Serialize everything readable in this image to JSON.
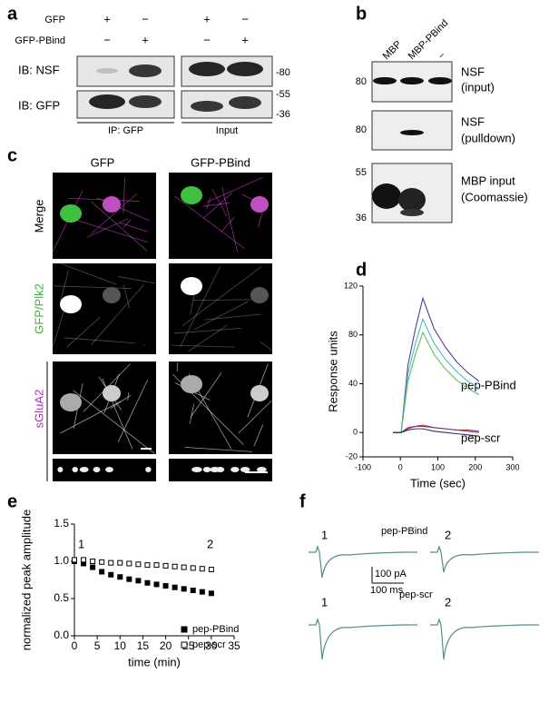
{
  "panel_a": {
    "letter": "a",
    "rows": [
      "GFP",
      "GFP-PBind"
    ],
    "signs": [
      [
        "+",
        "−",
        "+",
        "−"
      ],
      [
        "−",
        "+",
        "−",
        "+"
      ]
    ],
    "blots": [
      "IB: NSF",
      "IB: GFP"
    ],
    "markers": [
      "-80",
      "-55",
      "-36"
    ],
    "groups": [
      "IP: GFP",
      "Input"
    ]
  },
  "panel_b": {
    "letter": "b",
    "lanes": [
      "MBP",
      "MBP-PBind",
      "−"
    ],
    "markers": [
      "80",
      "80",
      "55",
      "36"
    ],
    "labels": [
      "NSF",
      "(input)",
      "NSF",
      "(pulldown)",
      "MBP input",
      "(Coomassie)"
    ]
  },
  "panel_c": {
    "letter": "c",
    "columns": [
      "GFP",
      "GFP-PBind"
    ],
    "rows": [
      "Merge",
      "GFP/Plk2",
      "sGluA2"
    ]
  },
  "panel_f": {
    "letter": "f",
    "conditions": [
      "pep-PBind",
      "pep-scr"
    ],
    "times": [
      "1",
      "2",
      "1",
      "2"
    ],
    "scale": [
      "100 pA",
      "100 ms"
    ]
  },
  "chart_data": [
    {
      "type": "line",
      "panel_label": "d",
      "y_label": "Response units",
      "x_label": "Time (sec)",
      "annotations": [
        "pep-PBind",
        "pep-scr"
      ],
      "x": [
        -20,
        0,
        2,
        20,
        40,
        60,
        90,
        120,
        150,
        180,
        210
      ],
      "series": [
        {
          "color": "#5b3a9a",
          "values": [
            0,
            0,
            0,
            55,
            85,
            110,
            85,
            70,
            58,
            49,
            42
          ]
        },
        {
          "color": "#4bb8c8",
          "values": [
            0,
            0,
            0,
            48,
            73,
            93,
            73,
            60,
            50,
            42,
            36
          ]
        },
        {
          "color": "#5cc05c",
          "values": [
            0,
            0,
            0,
            42,
            64,
            82,
            64,
            52,
            43,
            36,
            31
          ]
        },
        {
          "color": "#c03030",
          "values": [
            0,
            0,
            0,
            3,
            5,
            6,
            4,
            3,
            2,
            1,
            0
          ]
        },
        {
          "color": "#7a3a8a",
          "values": [
            0,
            0,
            0,
            4,
            5,
            5,
            4,
            3,
            2,
            2,
            1
          ]
        },
        {
          "color": "#303060",
          "values": [
            0,
            0,
            0,
            2,
            3,
            3,
            1,
            0,
            -1,
            -2,
            -3
          ]
        }
      ],
      "xlim": [
        -100,
        300
      ],
      "xticks": [
        -100,
        0,
        100,
        200,
        300
      ],
      "ylim": [
        -20,
        120
      ],
      "yticks": [
        -20,
        0,
        40,
        80,
        120
      ]
    },
    {
      "type": "scatter",
      "panel_label": "e",
      "y_label": "normalized peak amplitude",
      "x_label": "time (min)",
      "annotations": [
        "1",
        "2"
      ],
      "x": [
        0,
        2,
        4,
        6,
        8,
        10,
        12,
        14,
        16,
        18,
        20,
        22,
        24,
        26,
        28,
        30
      ],
      "series": [
        {
          "name": "pep-PBind",
          "color": "#000000",
          "marker": "filled",
          "values": [
            1.0,
            0.97,
            0.92,
            0.86,
            0.82,
            0.79,
            0.76,
            0.74,
            0.71,
            0.69,
            0.67,
            0.65,
            0.63,
            0.61,
            0.59,
            0.57
          ]
        },
        {
          "name": "pep-scr",
          "color": "#000000",
          "marker": "open",
          "values": [
            1.02,
            1.02,
            1.0,
            0.99,
            0.98,
            0.98,
            0.97,
            0.96,
            0.95,
            0.95,
            0.94,
            0.93,
            0.92,
            0.91,
            0.9,
            0.89
          ]
        }
      ],
      "xlim": [
        0,
        35
      ],
      "xticks": [
        0,
        5,
        10,
        15,
        20,
        25,
        30,
        35
      ],
      "ylim": [
        0,
        1.5
      ],
      "yticks": [
        {
          "value": 0,
          "label": "0.0"
        },
        {
          "value": 0.5,
          "label": "0.5"
        },
        {
          "value": 1,
          "label": "1.0"
        },
        {
          "value": 1.5,
          "label": "1.5"
        }
      ]
    }
  ]
}
